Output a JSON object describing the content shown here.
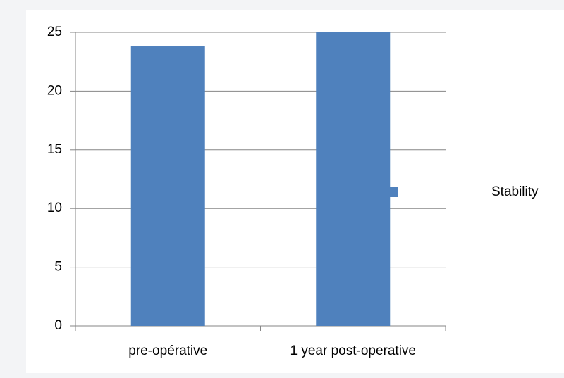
{
  "chart_data": {
    "type": "bar",
    "categories": [
      "pre-opérative",
      "1 year post-operative"
    ],
    "series": [
      {
        "name": "Stability",
        "color": "#4f81bd",
        "values": [
          23.8,
          25
        ]
      }
    ],
    "ylim": [
      0,
      25
    ],
    "yticks": [
      0,
      5,
      10,
      15,
      20,
      25
    ],
    "grid": true,
    "legend": "right"
  }
}
